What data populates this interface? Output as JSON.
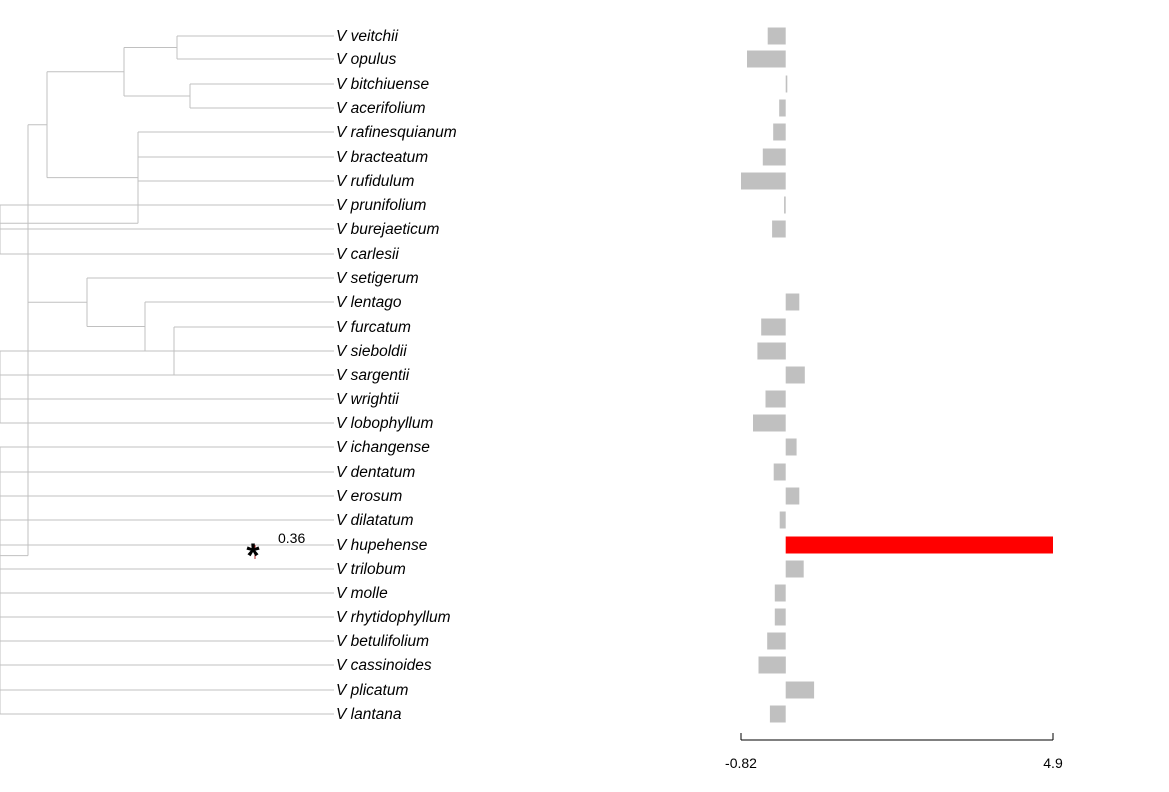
{
  "chart_data": {
    "type": "bar",
    "categories": [
      "V veitchii",
      "V opulus",
      "V bitchiuense",
      "V acerifolium",
      "V rafinesquianum",
      "V bracteatum",
      "V rufidulum",
      "V prunifolium",
      "V burejaeticum",
      "V carlesii",
      "V setigerum",
      "V lentago",
      "V furcatum",
      "V sieboldii",
      "V sargentii",
      "V wrightii",
      "V lobophyllum",
      "V ichangense",
      "V dentatum",
      "V erosum",
      "V dilatatum",
      "V hupehense",
      "V trilobum",
      "V molle",
      "V rhytidophyllum",
      "V betulifolium",
      "V cassinoides",
      "V plicatum",
      "V lantana"
    ],
    "values": [
      -0.33,
      -0.71,
      0.03,
      -0.12,
      -0.23,
      -0.42,
      -0.82,
      -0.03,
      -0.25,
      0.0,
      0.0,
      0.25,
      -0.45,
      -0.52,
      0.35,
      -0.37,
      -0.6,
      0.2,
      -0.22,
      0.25,
      -0.11,
      4.9,
      0.33,
      -0.2,
      -0.2,
      -0.34,
      -0.5,
      0.52,
      -0.29
    ],
    "highlight": {
      "taxon": "V hupehense",
      "color": "#ff0000",
      "branch_label": "0.36",
      "marker": "*"
    },
    "bar_color": "#c0c0c0",
    "tree_color": "#c0c0c0",
    "axis_ticks": [
      "-0.82",
      "4.9"
    ],
    "xlim": [
      -0.82,
      4.9
    ],
    "tree": {
      "n": [
        {
          "n": [
            {
              "n": [
                {
                  "n": [
                    {
                      "t": 0
                    },
                    {
                      "t": 1
                    }
                  ]
                },
                {
                  "n": [
                    {
                      "t": 2
                    },
                    {
                      "t": 3
                    }
                  ]
                }
              ]
            },
            {
              "n": [
                {
                  "t": 4
                },
                {
                  "t": 5
                },
                {
                  "t": 6
                },
                {
                  "n": [
                    {
                      "t": 7
                    },
                    {
                      "n": [
                        {
                          "t": 8
                        },
                        {
                          "t": 9
                        }
                      ]
                    }
                  ]
                }
              ]
            }
          ]
        },
        {
          "n": [
            {
              "t": 10
            },
            {
              "n": [
                {
                  "t": 11
                },
                {
                  "n": [
                    {
                      "t": 12
                    },
                    {
                      "n": [
                        {
                          "t": 13
                        },
                        {
                          "n": [
                            {
                              "t": 14
                            },
                            {
                              "t": 15
                            },
                            {
                              "t": 16
                            }
                          ]
                        }
                      ]
                    }
                  ]
                }
              ]
            }
          ]
        },
        {
          "n": [
            {
              "n": [
                {
                  "t": 17
                },
                {
                  "n": [
                    {
                      "t": 18
                    },
                    {
                      "n": [
                        {
                          "t": 19
                        },
                        {
                          "t": 20
                        }
                      ]
                    }
                  ]
                }
              ]
            },
            {
              "n": [
                {
                  "n": [
                    {
                      "n": [
                        {
                          "t": 21
                        },
                        {
                          "n": [
                            {
                              "t": 22
                            },
                            {
                              "t": 23
                            }
                          ]
                        }
                      ]
                    },
                    {
                      "n": [
                        {
                          "t": 24
                        },
                        {
                          "t": 25
                        }
                      ]
                    }
                  ]
                },
                {
                  "n": [
                    {
                      "t": 26
                    },
                    {
                      "t": 27
                    },
                    {
                      "t": 28
                    }
                  ]
                }
              ]
            }
          ]
        }
      ]
    }
  }
}
